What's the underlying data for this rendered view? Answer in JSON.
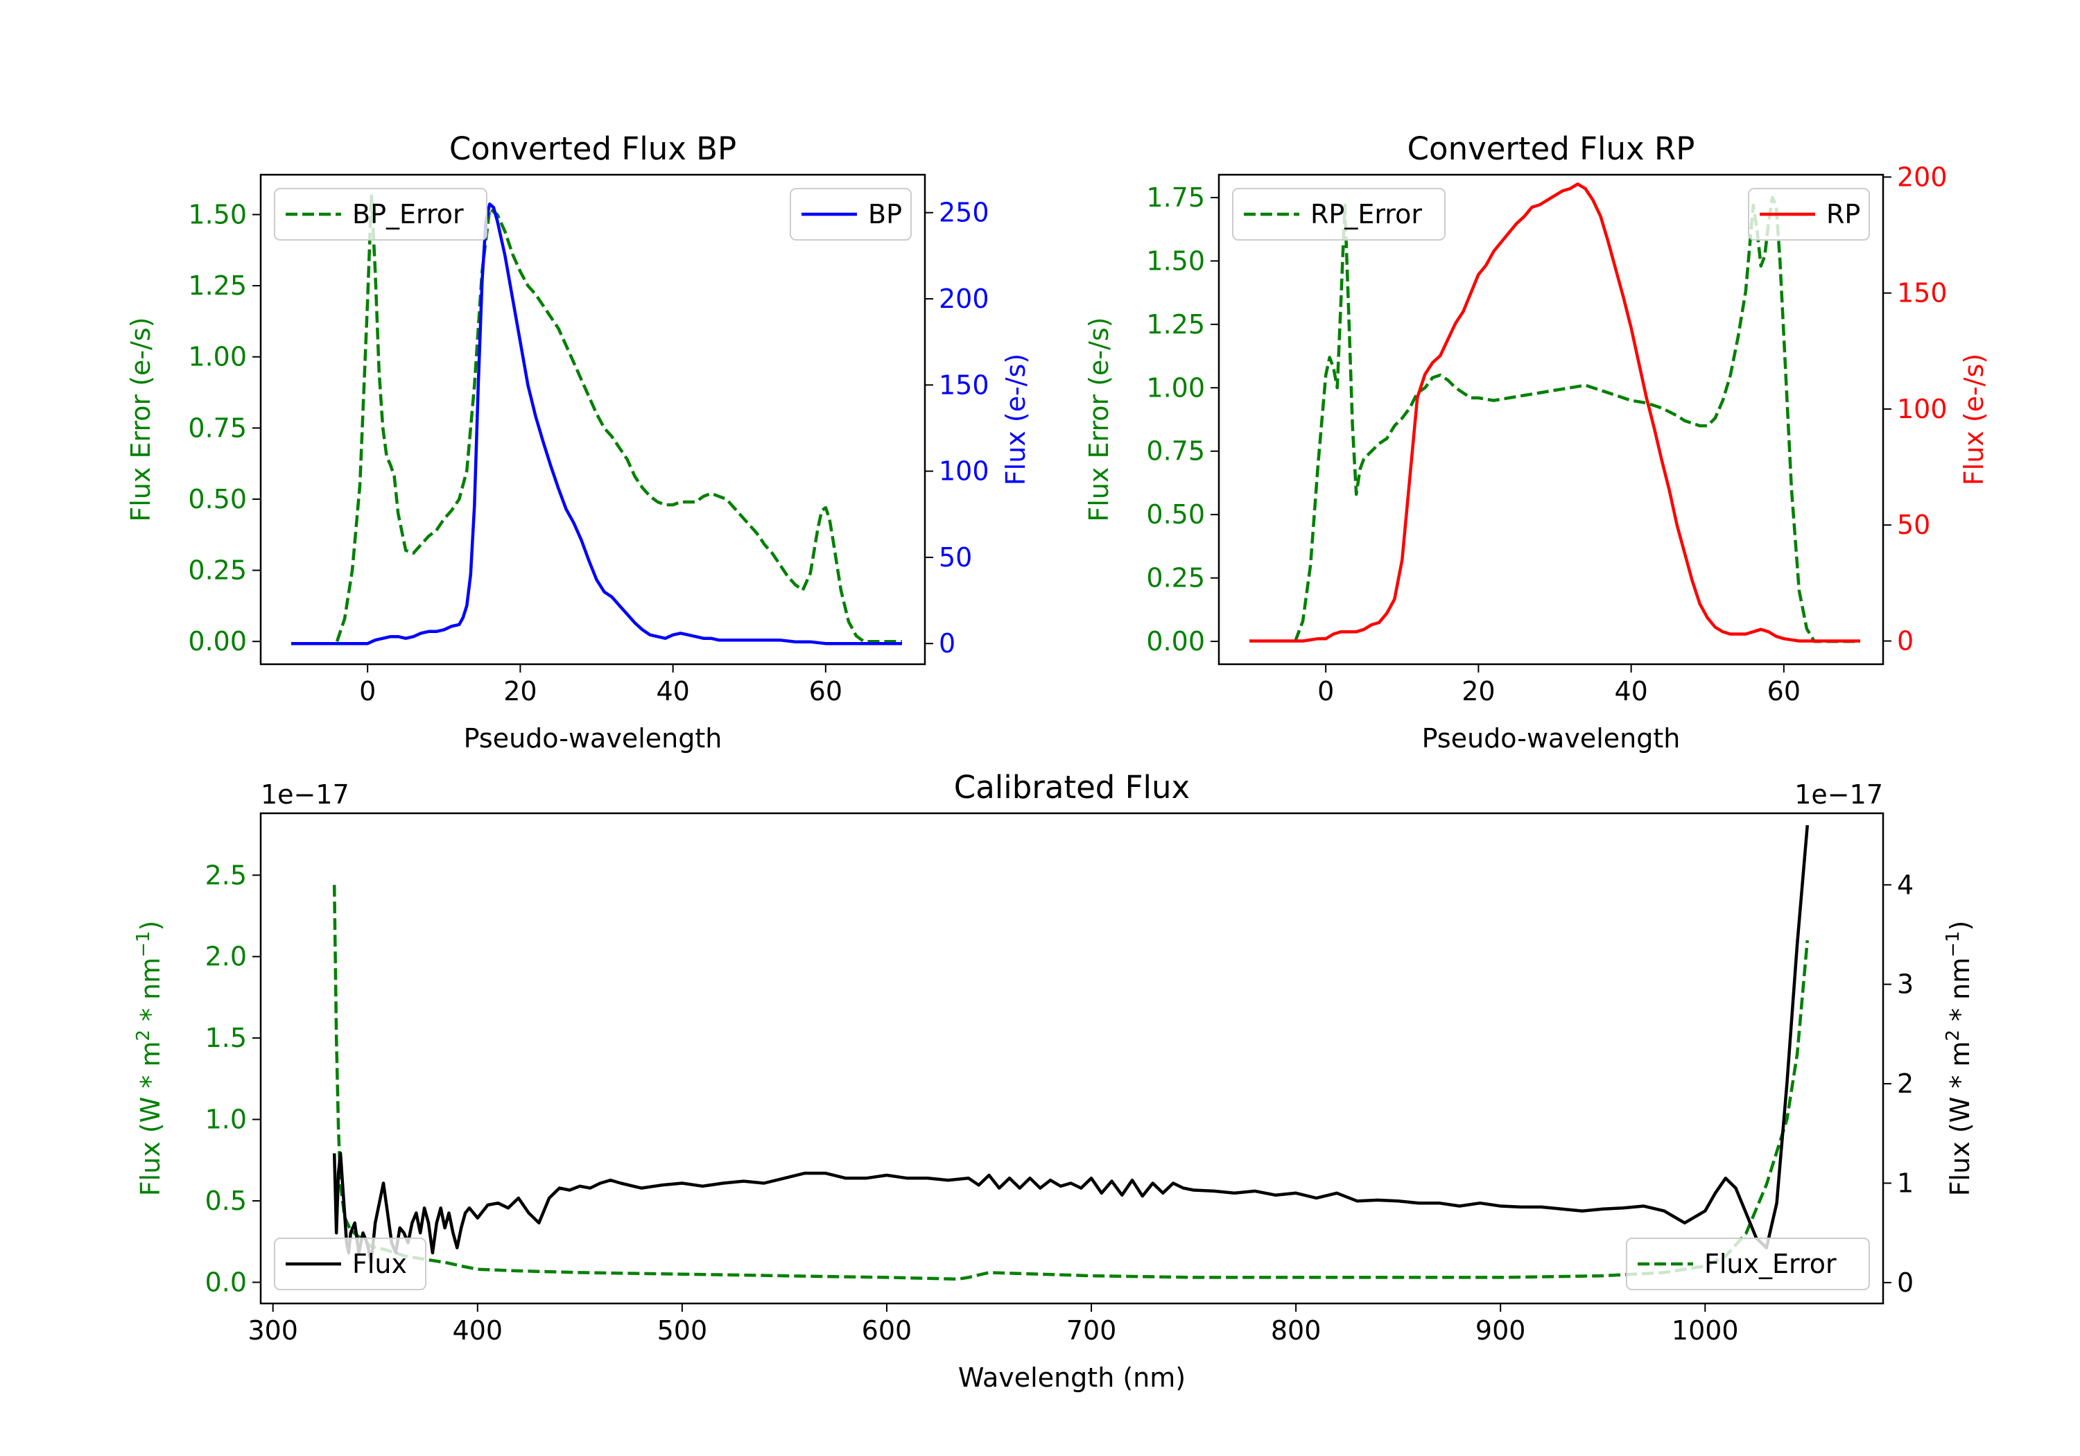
{
  "colors": {
    "error": "#008000",
    "bp": "#0000ff",
    "rp": "#ff0000",
    "calib": "#000000",
    "axis": "#000000"
  },
  "chart_data": [
    {
      "id": "bp",
      "type": "line",
      "title": "Converted Flux BP",
      "xlabel": "Pseudo-wavelength",
      "ylabel_left": "Flux Error (e-/s)",
      "ylabel_right": "Flux (e-/s)",
      "xlim": [
        -14,
        73
      ],
      "ylim_left": [
        -0.08,
        1.64
      ],
      "ylim_right": [
        -12,
        272
      ],
      "xticks": [
        0,
        20,
        40,
        60
      ],
      "yticks_left": [
        "0.00",
        "0.25",
        "0.50",
        "0.75",
        "1.00",
        "1.25",
        "1.50"
      ],
      "yticks_right": [
        "0",
        "50",
        "100",
        "150",
        "200",
        "250"
      ],
      "legend_left": "BP_Error",
      "legend_right": "BP",
      "series": [
        {
          "name": "BP_Error",
          "axis": "left",
          "style": "dashed",
          "color_key": "error",
          "x": [
            -4,
            -3,
            -2,
            -1,
            0,
            0.5,
            1,
            1.5,
            2,
            2.5,
            3,
            3.5,
            4,
            5,
            6,
            7,
            8,
            9,
            10,
            11,
            12,
            13,
            14,
            15,
            16,
            17,
            18,
            19,
            20,
            21,
            22,
            23,
            24,
            25,
            26,
            27,
            28,
            29,
            30,
            31,
            32,
            33,
            34,
            35,
            36,
            37,
            38,
            39,
            40,
            41,
            42,
            43,
            44,
            45,
            46,
            47,
            48,
            49,
            50,
            51,
            52,
            53,
            54,
            55,
            56,
            57,
            58,
            59,
            59.5,
            60,
            60.5,
            61,
            62,
            63,
            64,
            65,
            66,
            68,
            70
          ],
          "y": [
            0.0,
            0.08,
            0.25,
            0.55,
            1.2,
            1.57,
            1.3,
            0.95,
            0.75,
            0.65,
            0.62,
            0.58,
            0.45,
            0.32,
            0.31,
            0.34,
            0.37,
            0.39,
            0.43,
            0.46,
            0.5,
            0.6,
            0.9,
            1.3,
            1.52,
            1.5,
            1.44,
            1.36,
            1.3,
            1.25,
            1.22,
            1.18,
            1.14,
            1.1,
            1.04,
            0.98,
            0.92,
            0.86,
            0.8,
            0.75,
            0.72,
            0.68,
            0.64,
            0.58,
            0.54,
            0.51,
            0.49,
            0.48,
            0.48,
            0.49,
            0.49,
            0.49,
            0.51,
            0.52,
            0.51,
            0.5,
            0.47,
            0.44,
            0.41,
            0.38,
            0.34,
            0.31,
            0.27,
            0.23,
            0.2,
            0.18,
            0.24,
            0.4,
            0.46,
            0.47,
            0.43,
            0.35,
            0.18,
            0.07,
            0.02,
            0.0,
            0.0,
            0.0,
            0.0
          ]
        },
        {
          "name": "BP",
          "axis": "right",
          "style": "solid",
          "color_key": "bp",
          "x": [
            -10,
            -8,
            -6,
            -4,
            -2,
            -1,
            0,
            1,
            2,
            3,
            4,
            5,
            6,
            7,
            8,
            9,
            10,
            11,
            12,
            12.5,
            13,
            13.5,
            14,
            14.5,
            15,
            15.5,
            16,
            16.5,
            17,
            18,
            19,
            20,
            21,
            22,
            23,
            24,
            25,
            26,
            27,
            28,
            29,
            30,
            31,
            32,
            33,
            34,
            35,
            36,
            37,
            38,
            39,
            40,
            41,
            42,
            43,
            44,
            45,
            46,
            48,
            50,
            52,
            54,
            56,
            58,
            60,
            62,
            64,
            66,
            68,
            70
          ],
          "y": [
            0,
            0,
            0,
            0,
            0,
            0,
            0,
            2,
            3,
            4,
            4,
            3,
            4,
            6,
            7,
            7,
            8,
            10,
            11,
            15,
            22,
            40,
            80,
            150,
            210,
            245,
            255,
            253,
            245,
            225,
            200,
            175,
            150,
            132,
            117,
            103,
            90,
            78,
            70,
            60,
            48,
            37,
            30,
            27,
            22,
            17,
            12,
            8,
            5,
            4,
            3,
            5,
            6,
            5,
            4,
            3,
            3,
            2,
            2,
            2,
            2,
            2,
            1,
            1,
            0,
            0,
            0,
            0,
            0,
            0
          ]
        }
      ]
    },
    {
      "id": "rp",
      "type": "line",
      "title": "Converted Flux RP",
      "xlabel": "Pseudo-wavelength",
      "ylabel_left": "Flux Error (e-/s)",
      "ylabel_right": "Flux (e-/s)",
      "xlim": [
        -14,
        73
      ],
      "ylim_left": [
        -0.09,
        1.84
      ],
      "ylim_right": [
        -10,
        201
      ],
      "xticks": [
        0,
        20,
        40,
        60
      ],
      "yticks_left": [
        "0.00",
        "0.25",
        "0.50",
        "0.75",
        "1.00",
        "1.25",
        "1.50",
        "1.75"
      ],
      "yticks_right": [
        "0",
        "50",
        "100",
        "150",
        "200"
      ],
      "legend_left": "RP_Error",
      "legend_right": "RP",
      "series": [
        {
          "name": "RP_Error",
          "axis": "left",
          "style": "dashed",
          "color_key": "error",
          "x": [
            -4,
            -3,
            -2,
            -1,
            0,
            0.5,
            1,
            1.5,
            2,
            2.5,
            3,
            3.5,
            4,
            4.5,
            5,
            6,
            7,
            8,
            9,
            10,
            11,
            12,
            13,
            14,
            15,
            16,
            17,
            18,
            19,
            20,
            22,
            24,
            26,
            28,
            30,
            32,
            34,
            36,
            38,
            40,
            42,
            44,
            46,
            47,
            48,
            49,
            50,
            51,
            52,
            53,
            54,
            55,
            55.5,
            56,
            56.5,
            57,
            57.5,
            58,
            58.5,
            59,
            59.5,
            60,
            61,
            62,
            63,
            64,
            65,
            67,
            70
          ],
          "y": [
            0.0,
            0.08,
            0.3,
            0.7,
            1.05,
            1.12,
            1.08,
            1.0,
            1.35,
            1.72,
            1.3,
            0.85,
            0.58,
            0.68,
            0.72,
            0.75,
            0.78,
            0.8,
            0.85,
            0.88,
            0.92,
            0.98,
            1.0,
            1.04,
            1.05,
            1.03,
            1.0,
            0.98,
            0.96,
            0.96,
            0.95,
            0.96,
            0.97,
            0.98,
            0.99,
            1.0,
            1.01,
            0.99,
            0.97,
            0.95,
            0.94,
            0.92,
            0.89,
            0.87,
            0.86,
            0.85,
            0.85,
            0.88,
            0.95,
            1.05,
            1.2,
            1.38,
            1.55,
            1.72,
            1.62,
            1.48,
            1.52,
            1.65,
            1.75,
            1.72,
            1.5,
            1.2,
            0.6,
            0.2,
            0.05,
            0.0,
            0.0,
            0.0,
            0.0
          ]
        },
        {
          "name": "RP",
          "axis": "right",
          "style": "solid",
          "color_key": "rp",
          "x": [
            -10,
            -6,
            -3,
            -1,
            0,
            1,
            2,
            3,
            4,
            5,
            6,
            7,
            8,
            9,
            10,
            11,
            12,
            13,
            14,
            15,
            16,
            17,
            18,
            19,
            20,
            21,
            22,
            23,
            24,
            25,
            26,
            27,
            28,
            29,
            30,
            31,
            32,
            33,
            34,
            35,
            36,
            37,
            38,
            39,
            40,
            41,
            42,
            43,
            44,
            45,
            46,
            47,
            48,
            49,
            50,
            51,
            52,
            53,
            54,
            55,
            56,
            57,
            58,
            59,
            60,
            62,
            64,
            66,
            70
          ],
          "y": [
            0,
            0,
            0,
            1,
            1,
            3,
            4,
            4,
            4,
            5,
            7,
            8,
            12,
            18,
            35,
            70,
            105,
            115,
            120,
            123,
            130,
            137,
            142,
            150,
            158,
            162,
            168,
            172,
            176,
            180,
            183,
            187,
            188,
            190,
            192,
            194,
            195,
            197,
            195,
            190,
            183,
            172,
            160,
            148,
            135,
            120,
            105,
            92,
            78,
            65,
            50,
            38,
            26,
            16,
            10,
            6,
            4,
            3,
            3,
            3,
            4,
            5,
            4,
            2,
            1,
            0,
            0,
            0,
            0
          ]
        }
      ]
    },
    {
      "id": "calib",
      "type": "line",
      "title": "Calibrated Flux",
      "xlabel": "Wavelength (nm)",
      "ylabel_left": "Flux (W * m$^2$ * nm$^{-1}$)",
      "ylabel_right": "Flux (W * m$^2$ * nm$^{-1}$)",
      "offset_left": "1e−17",
      "offset_right": "1e−17",
      "xlim": [
        294,
        1087
      ],
      "ylim_left": [
        -0.13,
        2.88
      ],
      "ylim_right": [
        -0.21,
        4.72
      ],
      "xticks": [
        300,
        400,
        500,
        600,
        700,
        800,
        900,
        1000
      ],
      "yticks_left": [
        "0.0",
        "0.5",
        "1.0",
        "1.5",
        "2.0",
        "2.5"
      ],
      "yticks_right": [
        "0",
        "1",
        "2",
        "3",
        "4"
      ],
      "legend_left": "Flux",
      "legend_right": "Flux_Error",
      "series": [
        {
          "name": "Flux_Error",
          "axis": "left",
          "style": "dashed",
          "color_key": "error",
          "x": [
            330,
            331,
            332,
            333,
            335,
            338,
            342,
            348,
            355,
            365,
            375,
            385,
            392,
            400,
            420,
            450,
            500,
            550,
            600,
            635,
            640,
            650,
            700,
            750,
            800,
            850,
            900,
            950,
            980,
            1000,
            1010,
            1020,
            1030,
            1040,
            1045,
            1050
          ],
          "y": [
            2.44,
            1.5,
            0.95,
            0.6,
            0.4,
            0.32,
            0.28,
            0.22,
            0.2,
            0.16,
            0.14,
            0.12,
            0.1,
            0.08,
            0.07,
            0.06,
            0.05,
            0.04,
            0.03,
            0.02,
            0.03,
            0.06,
            0.04,
            0.03,
            0.03,
            0.03,
            0.03,
            0.04,
            0.06,
            0.1,
            0.16,
            0.3,
            0.6,
            1.0,
            1.4,
            2.1
          ]
        },
        {
          "name": "Flux",
          "axis": "right",
          "style": "solid",
          "color_key": "calib",
          "x": [
            330,
            331,
            332,
            333,
            334,
            335,
            336,
            337,
            338,
            340,
            342,
            344,
            346,
            348,
            350,
            352,
            354,
            356,
            358,
            360,
            362,
            364,
            366,
            368,
            370,
            372,
            374,
            376,
            378,
            380,
            382,
            384,
            386,
            388,
            390,
            392,
            394,
            396,
            398,
            400,
            405,
            410,
            415,
            420,
            425,
            430,
            435,
            440,
            445,
            450,
            455,
            460,
            465,
            470,
            480,
            490,
            500,
            510,
            520,
            530,
            540,
            550,
            560,
            570,
            580,
            590,
            600,
            610,
            620,
            630,
            640,
            645,
            650,
            655,
            660,
            665,
            670,
            675,
            680,
            685,
            690,
            695,
            700,
            705,
            710,
            715,
            720,
            725,
            730,
            735,
            740,
            745,
            750,
            760,
            770,
            780,
            790,
            800,
            810,
            820,
            830,
            840,
            850,
            860,
            870,
            880,
            890,
            900,
            910,
            920,
            930,
            940,
            950,
            960,
            970,
            980,
            990,
            1000,
            1005,
            1010,
            1015,
            1020,
            1025,
            1030,
            1035,
            1040,
            1045,
            1050
          ],
          "y": [
            1.3,
            0.5,
            1.1,
            1.3,
            1.0,
            0.7,
            0.4,
            0.3,
            0.5,
            0.6,
            0.3,
            0.5,
            0.4,
            0.2,
            0.6,
            0.8,
            1.0,
            0.7,
            0.4,
            0.3,
            0.55,
            0.5,
            0.4,
            0.6,
            0.7,
            0.5,
            0.75,
            0.6,
            0.3,
            0.6,
            0.75,
            0.55,
            0.7,
            0.5,
            0.35,
            0.55,
            0.7,
            0.75,
            0.7,
            0.65,
            0.78,
            0.8,
            0.75,
            0.85,
            0.7,
            0.6,
            0.85,
            0.95,
            0.93,
            0.97,
            0.95,
            1.0,
            1.03,
            1.0,
            0.95,
            0.98,
            1.0,
            0.97,
            1.0,
            1.02,
            1.0,
            1.05,
            1.1,
            1.1,
            1.05,
            1.05,
            1.08,
            1.05,
            1.05,
            1.03,
            1.05,
            0.98,
            1.08,
            0.95,
            1.05,
            0.95,
            1.05,
            0.95,
            1.03,
            0.97,
            1.0,
            0.95,
            1.05,
            0.9,
            1.02,
            0.88,
            1.03,
            0.87,
            1.0,
            0.9,
            1.0,
            0.95,
            0.93,
            0.92,
            0.9,
            0.92,
            0.88,
            0.9,
            0.85,
            0.9,
            0.82,
            0.83,
            0.82,
            0.8,
            0.8,
            0.77,
            0.8,
            0.77,
            0.76,
            0.76,
            0.74,
            0.72,
            0.74,
            0.75,
            0.77,
            0.72,
            0.6,
            0.72,
            0.9,
            1.05,
            0.95,
            0.7,
            0.45,
            0.35,
            0.8,
            2.0,
            3.4,
            4.6
          ]
        }
      ]
    }
  ]
}
